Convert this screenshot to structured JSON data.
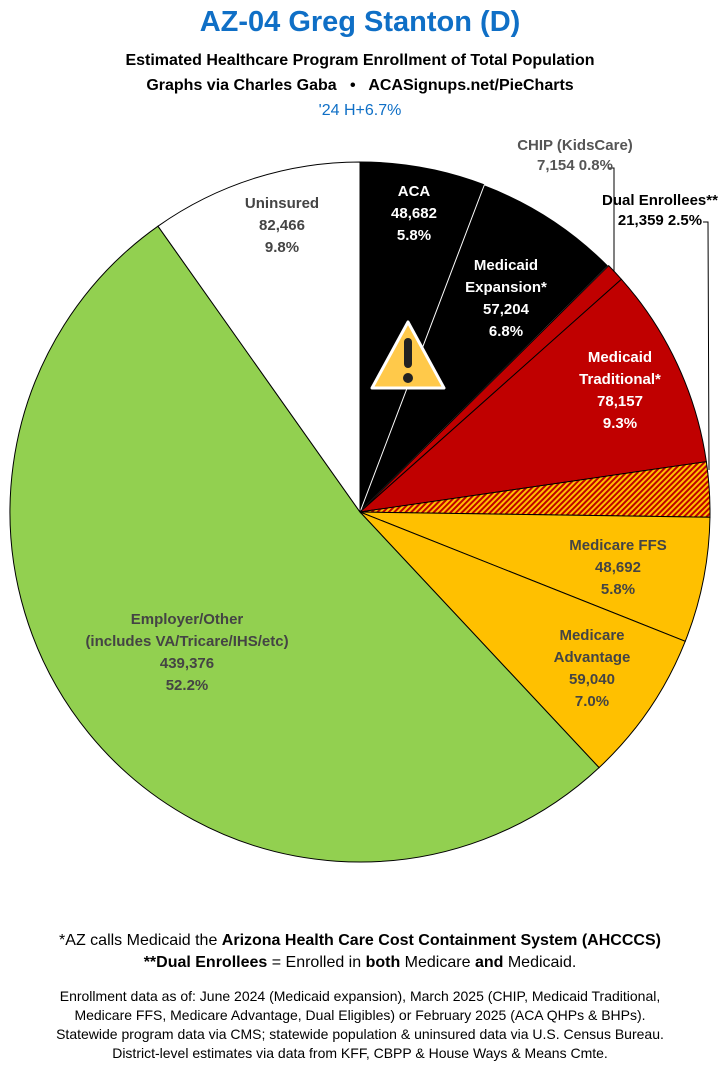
{
  "header": {
    "title": "AZ-04 Greg Stanton (D)",
    "subtitle": "Estimated Healthcare Program Enrollment of Total Population",
    "credit": "Graphs via Charles Gaba   •   ACASignups.net/PieCharts",
    "partisan_lean": "'24 H+6.7%"
  },
  "chart_data": {
    "type": "pie",
    "start": "12 o'clock, clockwise",
    "slices": [
      {
        "label": [
          "ACA"
        ],
        "value": 48682,
        "value_text": "48,682",
        "percent": "5.8%",
        "color": "#000000",
        "text_color": "#ffffff"
      },
      {
        "label": [
          "Medicaid",
          "Expansion*"
        ],
        "value": 57204,
        "value_text": "57,204",
        "percent": "6.8%",
        "color": "#000000",
        "text_color": "#ffffff"
      },
      {
        "label": [
          "CHIP (KidsCare)"
        ],
        "value": 7154,
        "value_text": "7,154",
        "percent": "0.8%",
        "color": "#c00000",
        "text_color": "#555555"
      },
      {
        "label": [
          "Medicaid",
          "Traditional*"
        ],
        "value": 78157,
        "value_text": "78,157",
        "percent": "9.3%",
        "color": "#c00000",
        "text_color": "#ffffff"
      },
      {
        "label": [
          "Dual Enrollees**"
        ],
        "value": 21359,
        "value_text": "21,359",
        "percent": "2.5%",
        "color": "hatched #c00000/#ffc000",
        "text_color": "#000000"
      },
      {
        "label": [
          "Medicare FFS"
        ],
        "value": 48692,
        "value_text": "48,692",
        "percent": "5.8%",
        "color": "#ffc000",
        "text_color": "#444444"
      },
      {
        "label": [
          "Medicare",
          "Advantage"
        ],
        "value": 59040,
        "value_text": "59,040",
        "percent": "7.0%",
        "color": "#ffc000",
        "text_color": "#444444"
      },
      {
        "label": [
          "Employer/Other",
          "(includes VA/Tricare/IHS/etc)"
        ],
        "value": 439376,
        "value_text": "439,376",
        "percent": "52.2%",
        "color": "#92d050",
        "text_color": "#444444"
      },
      {
        "label": [
          "Uninsured"
        ],
        "value": 82466,
        "value_text": "82,466",
        "percent": "9.8%",
        "color": "#ffffff",
        "text_color": "#444444"
      }
    ],
    "annotation_icon": "warning-triangle-icon"
  },
  "footnotes": {
    "note1_prefix": "*AZ calls Medicaid the ",
    "note1_bold": "Arizona Health Care Cost Containment System (AHCCCS)",
    "note2_bold1": "**Dual Enrollees",
    "note2_mid": " = Enrolled in ",
    "note2_bold2": "both",
    "note2_mid2": " Medicare ",
    "note2_bold3": "and",
    "note2_end": " Medicaid.",
    "sources": [
      "Enrollment data as of: June 2024 (Medicaid expansion), March 2025 (CHIP, Medicaid Traditional,",
      "Medicare FFS, Medicare Advantage, Dual Eligibles) or February 2025 (ACA QHPs & BHPs).",
      "Statewide program data via CMS; statewide population & uninsured data via U.S. Census Bureau.",
      "District-level estimates via data from KFF, CBPP & House Ways & Means Cmte."
    ]
  }
}
